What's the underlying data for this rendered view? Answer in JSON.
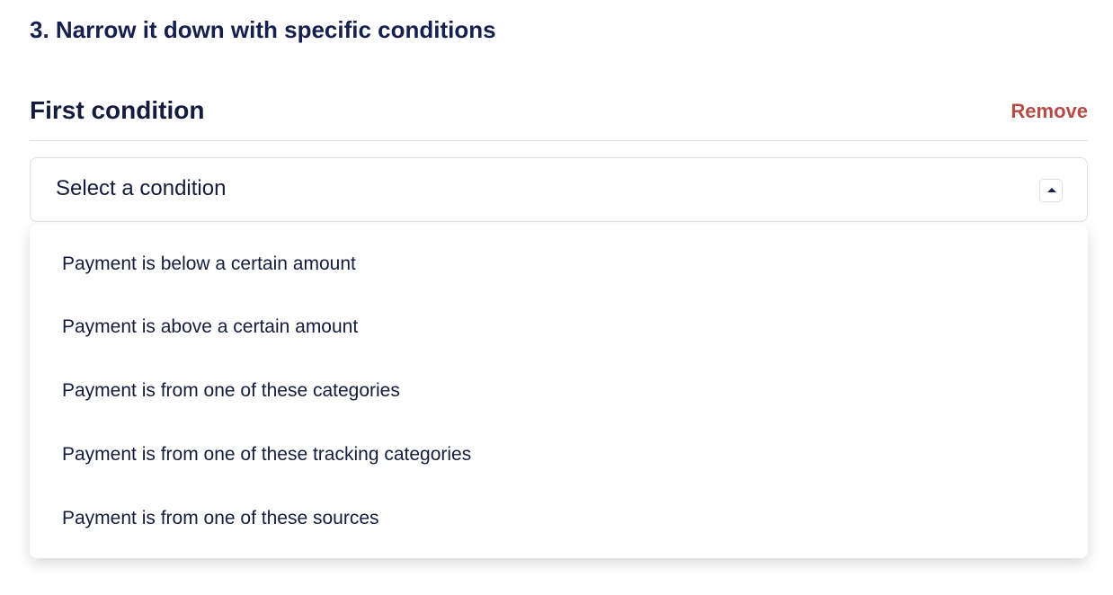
{
  "section": {
    "title": "3. Narrow it down with specific conditions"
  },
  "condition": {
    "title": "First condition",
    "remove_label": "Remove",
    "select_placeholder": "Select a condition",
    "caret_icon": "caret-up-icon",
    "options": [
      "Payment is below a certain amount",
      "Payment is above a certain amount",
      "Payment is from one of these categories",
      "Payment is from one of these tracking categories",
      "Payment is from one of these sources"
    ]
  },
  "colors": {
    "heading": "#16204f",
    "remove": "#b84a45",
    "border": "#e0e0e3"
  }
}
